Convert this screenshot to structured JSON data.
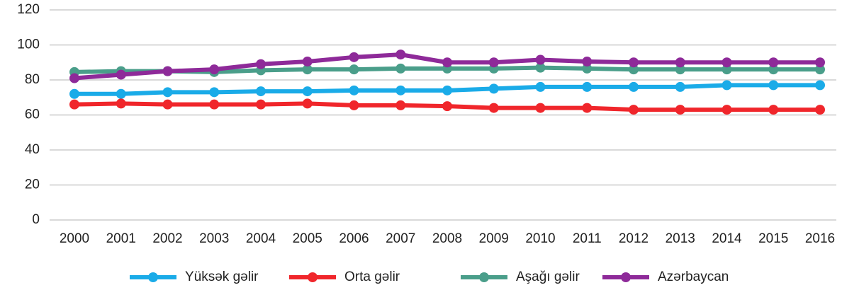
{
  "chart_data": {
    "type": "line",
    "categories": [
      "2000",
      "2001",
      "2002",
      "2003",
      "2004",
      "2005",
      "2006",
      "2007",
      "2008",
      "2009",
      "2010",
      "2011",
      "2012",
      "2013",
      "2014",
      "2015",
      "2016"
    ],
    "series": [
      {
        "name": "Yüksək gəlir",
        "color": "#1aabe8",
        "values": [
          72,
          72,
          73,
          73,
          73.5,
          73.5,
          74,
          74,
          74,
          75,
          76,
          76,
          76,
          76,
          77,
          77,
          77
        ]
      },
      {
        "name": "Orta gəlir",
        "color": "#f0262b",
        "values": [
          66,
          66.5,
          66,
          66,
          66,
          66.5,
          65.5,
          65.5,
          65,
          64,
          64,
          64,
          63,
          63,
          63,
          63,
          63
        ]
      },
      {
        "name": "Aşağı gəlir",
        "color": "#4a9e8a",
        "values": [
          84.5,
          85,
          85,
          84.5,
          85.5,
          86,
          86,
          86.5,
          86.5,
          86.5,
          87,
          86.5,
          86,
          86,
          86,
          86,
          86
        ]
      },
      {
        "name": "Azərbaycan",
        "color": "#8e2a99",
        "values": [
          81,
          83,
          85,
          86,
          89,
          90.5,
          93,
          94.5,
          90,
          90,
          91.5,
          90.5,
          90,
          90,
          90,
          90,
          90
        ]
      }
    ],
    "ylim": [
      0,
      120
    ],
    "yticks": [
      0,
      20,
      40,
      60,
      80,
      100,
      120
    ],
    "grid": true,
    "legend": "bottom"
  }
}
